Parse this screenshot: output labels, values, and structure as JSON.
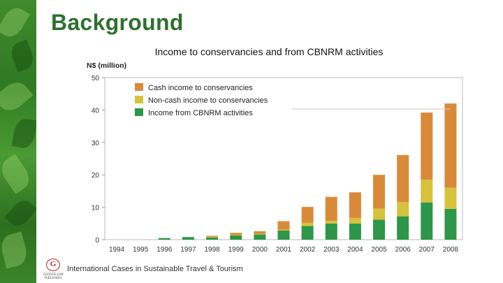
{
  "slide": {
    "title": "Background",
    "footer_text": "International Cases in Sustainable Travel & Tourism",
    "logo": {
      "letter": "G",
      "text": "GOODFELLOW PUBLISHERS"
    }
  },
  "chart_data": {
    "type": "bar",
    "stacked": true,
    "title": "Income to conservancies and from CBNRM activities",
    "ylabel": "N$ (million)",
    "xlabel": "",
    "ylim": [
      0,
      50
    ],
    "yticks": [
      0,
      10,
      20,
      30,
      40,
      50
    ],
    "grid": false,
    "legend_position": "top-left",
    "categories": [
      "1994",
      "1995",
      "1996",
      "1997",
      "1998",
      "1999",
      "2000",
      "2001",
      "2002",
      "2003",
      "2004",
      "2005",
      "2006",
      "2007",
      "2008"
    ],
    "series": [
      {
        "name": "Income from CBNRM activities",
        "color": "#2e9648",
        "values": [
          0,
          0,
          0.5,
          0.8,
          0.7,
          1.3,
          1.6,
          2.8,
          4.2,
          5.0,
          5.0,
          6.2,
          7.2,
          11.5,
          9.5
        ]
      },
      {
        "name": "Non-cash income to conservancies",
        "color": "#d6c23c",
        "values": [
          0,
          0,
          0,
          0,
          0.2,
          0.2,
          0.2,
          0.3,
          1.0,
          0.8,
          1.7,
          3.4,
          4.4,
          7.0,
          6.5
        ]
      },
      {
        "name": "Cash income to conservancies",
        "color": "#d98a38",
        "values": [
          0,
          0,
          0,
          0,
          0.3,
          0.6,
          0.8,
          2.6,
          4.9,
          7.4,
          7.9,
          10.4,
          14.5,
          20.7,
          26.0
        ]
      }
    ],
    "legend_order": [
      "Cash income to conservancies",
      "Non-cash income to conservancies",
      "Income from CBNRM activities"
    ]
  }
}
